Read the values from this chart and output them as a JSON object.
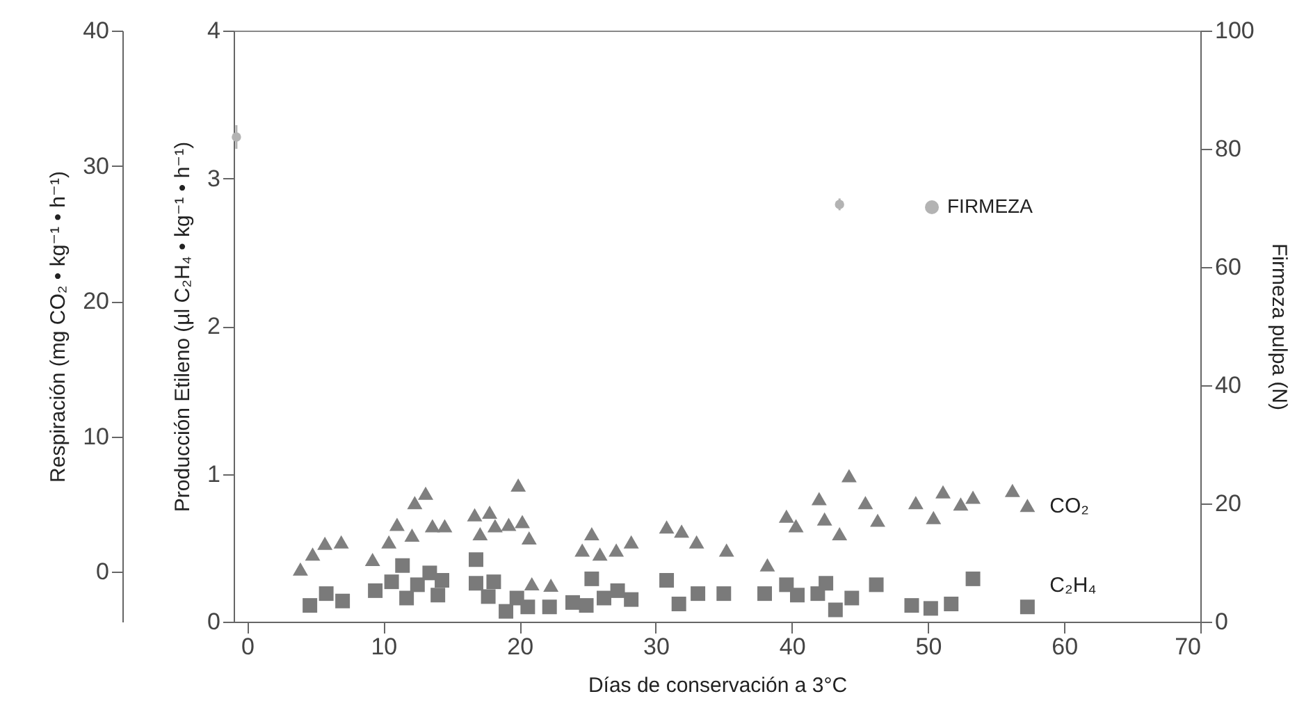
{
  "chart_data": {
    "type": "scatter",
    "xlabel": "Días de conservación a 3°C",
    "ylabel": "Producción Etileno (µl C₂H₄ • kg⁻¹ • h⁻¹)",
    "y2label": "Firmeza pulpa (N)",
    "y3label": "Respiración (mg CO₂ • kg⁻¹ • h⁻¹)",
    "xlim": [
      -1,
      70
    ],
    "xticks": [
      0,
      10,
      20,
      30,
      40,
      50,
      60,
      70
    ],
    "ylim": [
      0,
      4
    ],
    "yticks": [
      0,
      1,
      2,
      3,
      4
    ],
    "y2lim": [
      0,
      100
    ],
    "y2ticks": [
      0,
      20,
      40,
      60,
      80,
      100
    ],
    "y3lim": [
      -3.7,
      40
    ],
    "y3ticks": [
      0,
      10,
      20,
      30,
      40
    ],
    "grid": false,
    "legend": "top right",
    "series": [
      {
        "name": "CO₂",
        "color": "#7f7f7f",
        "marker": "triangle",
        "axis": "y3",
        "x": [
          3.9,
          4.8,
          5.7,
          6.9,
          9.2,
          10.4,
          11.0,
          12.1,
          12.3,
          13.1,
          13.6,
          14.5,
          16.7,
          17.1,
          17.8,
          18.2,
          19.2,
          19.9,
          20.2,
          20.7,
          20.9,
          22.3,
          24.6,
          25.3,
          25.9,
          27.1,
          28.2,
          30.8,
          31.9,
          33.0,
          35.2,
          38.2,
          39.6,
          40.3,
          42.0,
          42.4,
          43.5,
          44.2,
          45.4,
          46.3,
          49.1,
          50.4,
          51.1,
          52.4,
          53.3,
          56.2,
          57.3
        ],
        "values": [
          0.2,
          1.3,
          2.1,
          2.2,
          0.9,
          2.2,
          3.5,
          2.7,
          5.1,
          5.8,
          3.4,
          3.4,
          4.2,
          2.8,
          4.4,
          3.4,
          3.5,
          6.4,
          3.7,
          2.5,
          -0.9,
          -1.0,
          1.6,
          2.8,
          1.3,
          1.6,
          2.2,
          3.3,
          3.0,
          2.2,
          1.6,
          0.5,
          4.1,
          3.4,
          5.4,
          3.9,
          2.8,
          7.1,
          5.1,
          3.8,
          5.1,
          4.0,
          5.9,
          5.0,
          5.5,
          6.0,
          4.9
        ]
      },
      {
        "name": "C₂H₄",
        "color": "#7a7a7a",
        "marker": "square",
        "x": [
          4.6,
          5.8,
          7.0,
          9.4,
          10.6,
          11.4,
          11.7,
          12.5,
          13.4,
          14.0,
          14.3,
          16.8,
          16.8,
          17.7,
          18.1,
          19.0,
          19.8,
          20.6,
          22.2,
          23.9,
          24.9,
          25.3,
          26.2,
          27.2,
          28.2,
          30.8,
          31.7,
          33.1,
          35.0,
          38.0,
          39.6,
          40.4,
          41.9,
          42.5,
          43.2,
          44.4,
          46.2,
          48.8,
          50.2,
          51.7,
          53.3,
          57.3
        ],
        "values": [
          0.11,
          0.19,
          0.14,
          0.21,
          0.27,
          0.38,
          0.16,
          0.25,
          0.33,
          0.18,
          0.28,
          0.42,
          0.26,
          0.17,
          0.27,
          0.07,
          0.16,
          0.1,
          0.1,
          0.13,
          0.11,
          0.29,
          0.16,
          0.21,
          0.15,
          0.28,
          0.12,
          0.19,
          0.19,
          0.19,
          0.25,
          0.18,
          0.19,
          0.26,
          0.08,
          0.16,
          0.25,
          0.11,
          0.09,
          0.12,
          0.29,
          0.1
        ]
      },
      {
        "name": "FIRMEZA",
        "color": "#b3b3b3",
        "marker": "circle",
        "axis": "y2",
        "x": [
          -0.8,
          43.5
        ],
        "values": [
          82,
          70.6
        ],
        "errors": [
          2,
          1
        ]
      }
    ]
  }
}
